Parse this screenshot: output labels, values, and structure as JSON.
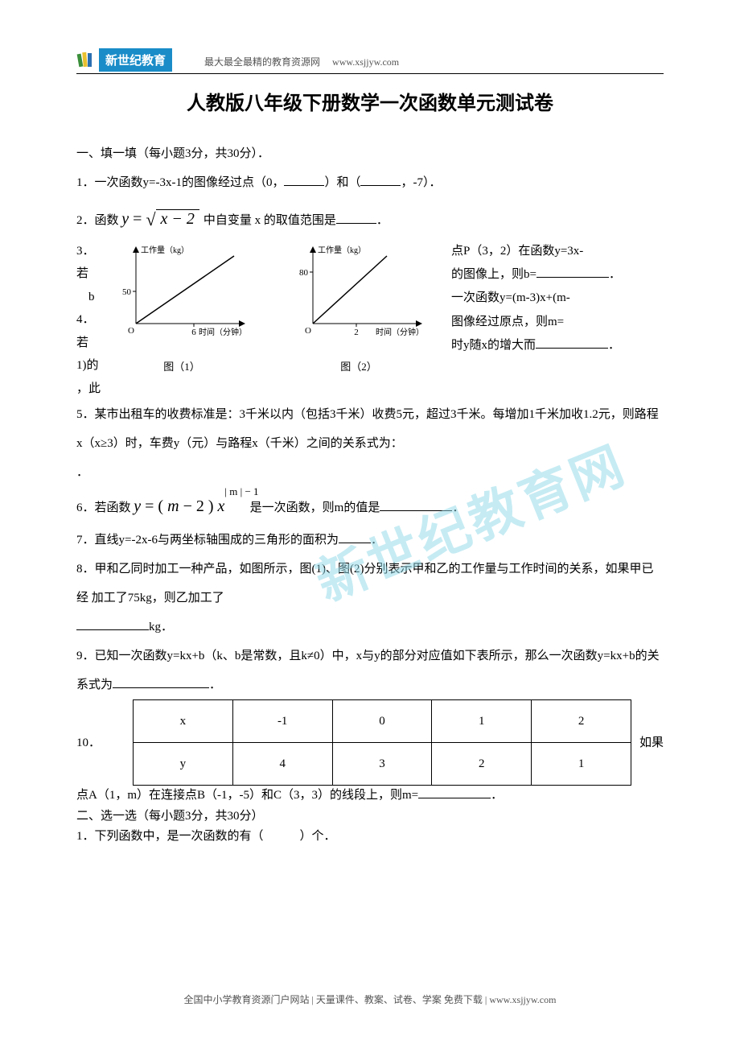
{
  "header": {
    "logo_text": "新世纪教育",
    "tagline": "最大最全最精的教育资源网",
    "url": "www.xsjjyw.com"
  },
  "title": "人教版八年级下册数学一次函数单元测试卷",
  "section1": {
    "heading": "一、填一填（每小题3分，共30分）．",
    "q1_a": "1．一次函数y=-3x-1的图像经过点（0，",
    "q1_b": "）和（",
    "q1_c": "，-7）．",
    "q2_a": "2．函数 ",
    "q2_y": "y",
    "q2_eq": " = ",
    "q2_expr": "x − 2",
    "q2_b": " 中自变量 x 的取值范围是",
    "q2_c": "．",
    "q3_left_1": "3．若",
    "q3_left_2": "b",
    "q3_left_3": "4．若",
    "q3_left_4": "1)的",
    "q3_left_5": "，此",
    "q3_right_1a": "点P（3，2）在函数y=3x-",
    "q3_right_2a": "的图像上，则b=",
    "q3_right_2b": "．",
    "q3_right_3": "一次函数y=(m-3)x+(m-",
    "q3_right_4a": "图像经过原点，则m=",
    "q3_right_5a": "时y随x的增大而",
    "q3_right_5b": "．",
    "chart1": {
      "caption": "图（1）",
      "y_label": "工作量（kg）",
      "x_label": "时间（分钟）",
      "y_tick": "50",
      "x_tick": "6",
      "origin": "O",
      "colors": {
        "axis": "#000000",
        "line": "#000000",
        "bg": "#ffffff"
      },
      "width": 170,
      "height": 120,
      "line_points": [
        [
          28,
          100
        ],
        [
          150,
          16
        ]
      ],
      "y_tick_y": 60,
      "x_tick_x": 100
    },
    "chart2": {
      "caption": "图（2）",
      "y_label": "工作量（kg）",
      "x_label": "时间（分钟）",
      "y_tick": "80",
      "x_tick": "2",
      "origin": "O",
      "colors": {
        "axis": "#000000",
        "line": "#000000",
        "bg": "#ffffff"
      },
      "width": 170,
      "height": 120,
      "line_points": [
        [
          28,
          100
        ],
        [
          120,
          16
        ]
      ],
      "y_tick_y": 36,
      "x_tick_x": 82
    },
    "q5": "5．某市出租车的收费标准是：3千米以内（包括3千米）收费5元，超过3千米。每增加1千米加收1.2元，则路程x（x≥3）时，车费y（元）与路程x（千米）之间的关系式为：",
    "q5_end": "．",
    "q6_a": "6．若函数 ",
    "q6_y": "y",
    "q6_eq": " = ( ",
    "q6_m": "m",
    "q6_minus2": " − 2 ) ",
    "q6_x": "x",
    "q6_exp": "| m | − 1",
    "q6_b": " 是一次函数，则m的值是",
    "q6_c": "．",
    "q7_a": "7．直线y=-2x-6与两坐标轴围成的三角形的面积为",
    "q7_b": "．",
    "q8_a": "8．甲和乙同时加工一种产品，如图所示，图(1)、图(2)分别表示甲和乙的工作量与工作时间的关系，如果甲已经 加工了75kg，则乙加工了",
    "q8_b": "kg．",
    "q9_a": "9．已知一次函数y=kx+b（k、b是常数，且k≠0）中，x与y的部分对应值如下表所示，那么一次函数y=kx+b的关系式为",
    "q9_b": "．",
    "table": {
      "header_label": "x",
      "row_label": "y",
      "x_values": [
        "-1",
        "0",
        "1",
        "2"
      ],
      "y_values": [
        "4",
        "3",
        "2",
        "1"
      ],
      "border_color": "#000000",
      "cell_font": "Times New Roman"
    },
    "q10_prefix": "10．",
    "q10_suffix": "如果",
    "q10_line2_a": "点A（1，m）在连接点B（-1，-5）和C（3，3）的线段上，则m=",
    "q10_line2_b": "．"
  },
  "section2": {
    "heading": "二、选一选（每小题3分，共30分）",
    "q1": "1．下列函数中，是一次函数的有（　　　）个．"
  },
  "watermark": "新世纪教育网",
  "footer": "全国中小学教育资源门户网站  |  天量课件、教案、试卷、学案 免费下载  |  www.xsjjyw.com"
}
